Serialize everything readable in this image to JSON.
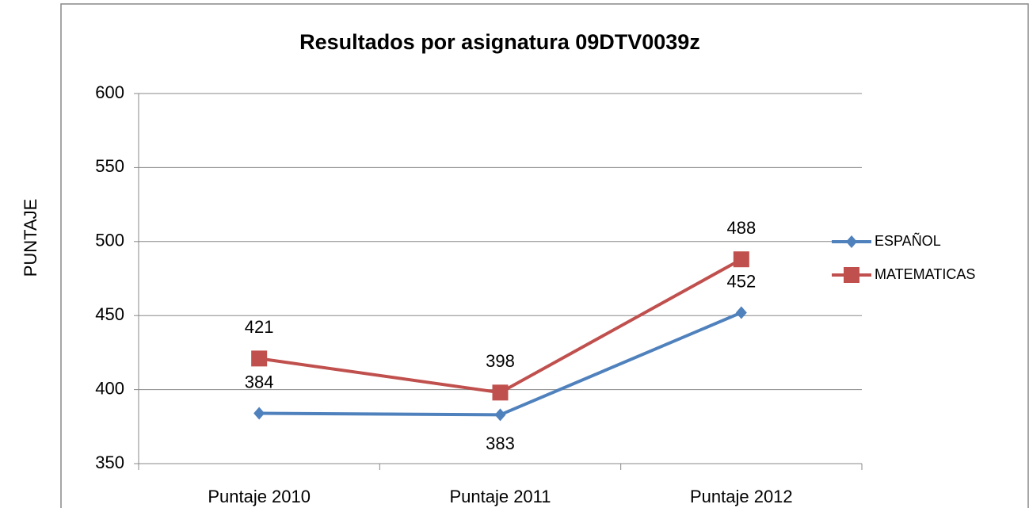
{
  "chart_data": {
    "type": "line",
    "title": "Resultados por asignatura 09DTV0039z",
    "y_label": "PUNTAJE",
    "categories": [
      "Puntaje 2010",
      "Puntaje 2011",
      "Puntaje 2012"
    ],
    "series": [
      {
        "name": "ESPAÑOL",
        "color": "#4f81bd",
        "marker": "diamond",
        "values": [
          384,
          383,
          452
        ]
      },
      {
        "name": "MATEMATICAS",
        "color": "#c0504d",
        "marker": "square",
        "values": [
          421,
          398,
          488
        ]
      }
    ],
    "ylim": [
      350,
      600
    ],
    "yticks": [
      350,
      400,
      450,
      500,
      550,
      600
    ],
    "grid": true,
    "legend": "right"
  }
}
